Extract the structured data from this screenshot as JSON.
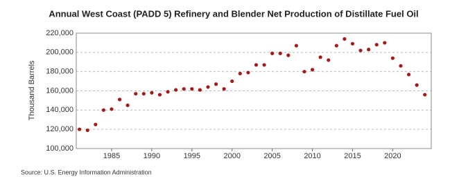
{
  "chart_data": {
    "type": "scatter",
    "title": "Annual West Coast (PADD 5) Refinery and Blender Net Production of Distillate Fuel Oil",
    "y_label": "Thousand Barrels",
    "source": "Source: U.S. Energy Information Administration",
    "x": [
      1981,
      1982,
      1983,
      1984,
      1985,
      1986,
      1987,
      1988,
      1989,
      1990,
      1991,
      1992,
      1993,
      1994,
      1995,
      1996,
      1997,
      1998,
      1999,
      2000,
      2001,
      2002,
      2003,
      2004,
      2005,
      2006,
      2007,
      2008,
      2009,
      2010,
      2011,
      2012,
      2013,
      2014,
      2015,
      2016,
      2017,
      2018,
      2019,
      2020,
      2021,
      2022,
      2023,
      2024
    ],
    "series": [
      {
        "name": "West Coast (PADD 5)",
        "color": "#a31a1a",
        "values": [
          120000,
          119000,
          125000,
          140000,
          141000,
          151000,
          145000,
          157000,
          157000,
          158000,
          156000,
          159000,
          161000,
          162000,
          162000,
          161000,
          164000,
          167000,
          162000,
          170000,
          178000,
          179000,
          187000,
          187000,
          199000,
          199000,
          197000,
          207000,
          180000,
          182000,
          195000,
          192000,
          207000,
          214000,
          209000,
          202000,
          203000,
          208000,
          210000,
          194000,
          186000,
          177000,
          166000,
          156000
        ]
      }
    ],
    "xlim": [
      1980.6,
      2024.8
    ],
    "xticks": [
      1985,
      1990,
      1995,
      2000,
      2005,
      2010,
      2015,
      2020
    ],
    "ylim": [
      100000,
      220000
    ],
    "yticks": [
      {
        "value": 100000,
        "label": "100,000"
      },
      {
        "value": 120000,
        "label": "120,000"
      },
      {
        "value": 140000,
        "label": "140,000"
      },
      {
        "value": 160000,
        "label": "160,000"
      },
      {
        "value": 180000,
        "label": "180,000"
      },
      {
        "value": 200000,
        "label": "200,000"
      },
      {
        "value": 220000,
        "label": "220,000"
      }
    ],
    "grid": true
  }
}
